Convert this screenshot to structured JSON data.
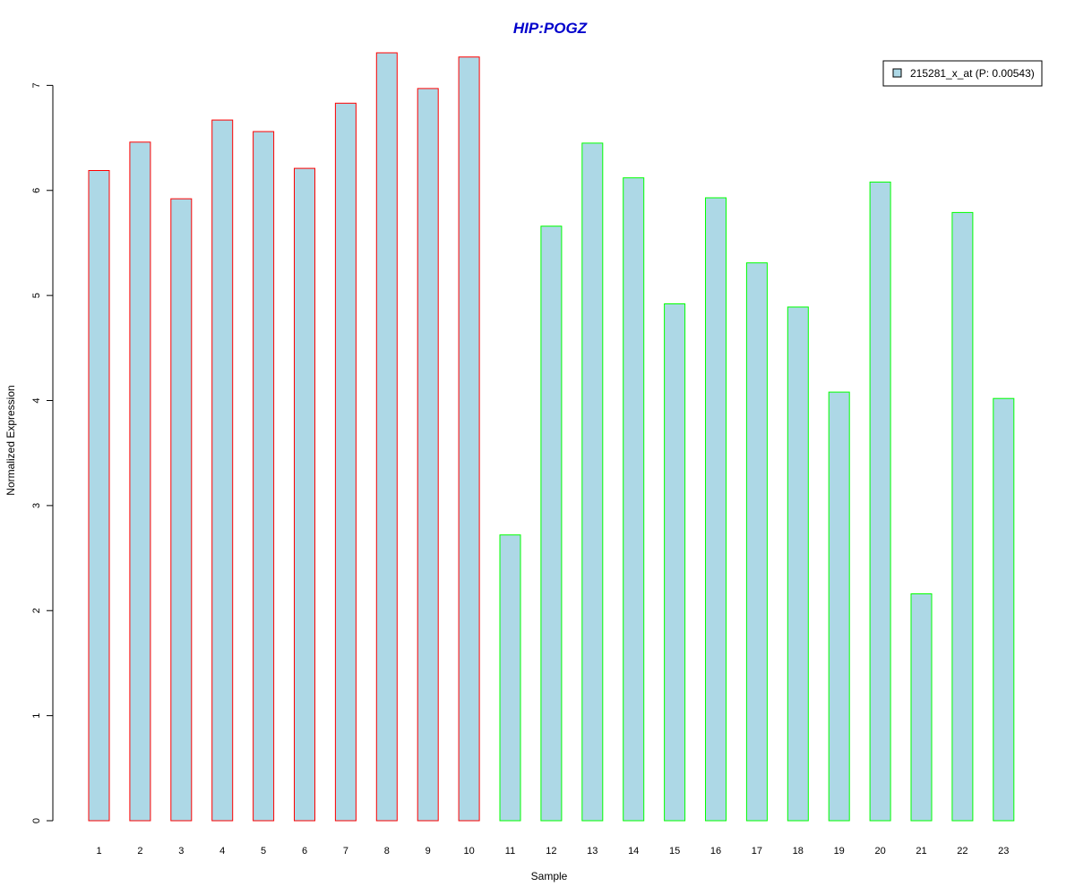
{
  "chart_data": {
    "type": "bar",
    "title": "HIP:POGZ",
    "xlabel": "Sample",
    "ylabel": "Normalized Expression",
    "categories": [
      "1",
      "2",
      "3",
      "4",
      "5",
      "6",
      "7",
      "8",
      "9",
      "10",
      "11",
      "12",
      "13",
      "14",
      "15",
      "16",
      "17",
      "18",
      "19",
      "20",
      "21",
      "22",
      "23"
    ],
    "values": [
      6.19,
      6.46,
      5.92,
      6.67,
      6.56,
      6.21,
      6.83,
      7.31,
      6.97,
      7.27,
      2.72,
      5.66,
      6.45,
      6.12,
      4.92,
      5.93,
      5.31,
      4.89,
      4.08,
      6.08,
      2.16,
      5.79,
      4.02
    ],
    "ylim": [
      0,
      7.31
    ],
    "yticks": [
      0,
      1,
      2,
      3,
      4,
      5,
      6,
      7
    ],
    "grid": false,
    "legend": {
      "position": "top-right",
      "entries": [
        {
          "label": "215281_x_at (P: 0.00543)",
          "color": "#add8e6"
        }
      ]
    },
    "colors": {
      "fill": "#add8e6",
      "group1_border": "#ff0000",
      "group2_border": "#00ff00",
      "title": "#0000cc"
    }
  }
}
